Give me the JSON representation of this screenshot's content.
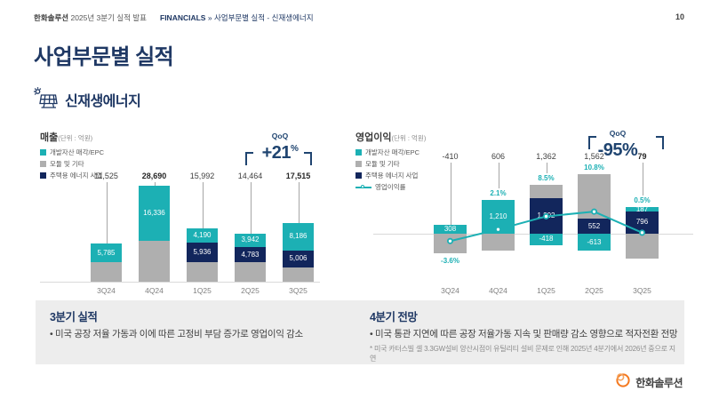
{
  "header": {
    "brand_bold": "한화솔루션",
    "brand_rest": " 2025년 3분기 실적 발표",
    "breadcrumb_section": "FINANCIALS",
    "breadcrumb_separator": "»",
    "breadcrumb_path": "사업부문별 실적 - 신재생에너지",
    "page_number": "10"
  },
  "title": "사업부문별 실적",
  "section_label": "신재생에너지",
  "colors": {
    "teal": "#1CB0B4",
    "navy": "#12265C",
    "gray": "#AFAFAF",
    "accent_navy": "#1F3864",
    "annotation_navy": "#1F4470",
    "box_bg": "#EDEDED",
    "logo_orange": "#F47920"
  },
  "chart_data": [
    {
      "type": "bar",
      "title": "매출",
      "unit_label": "(단위 : 억원)",
      "categories": [
        "3Q24",
        "4Q24",
        "1Q25",
        "2Q25",
        "3Q25"
      ],
      "legend": [
        {
          "name": "개발자산 매각/EPC",
          "color_key": "teal"
        },
        {
          "name": "모듈 및 기타",
          "color_key": "gray"
        },
        {
          "name": "주택용 에너지 사업",
          "color_key": "navy"
        }
      ],
      "series": [
        {
          "name": "개발자산 매각/EPC",
          "color_key": "teal",
          "values": [
            5785,
            16336,
            4190,
            3942,
            8186
          ],
          "labels": [
            "5,785",
            "16,336",
            "4,190",
            "3,942",
            "8,186"
          ]
        },
        {
          "name": "주택용 에너지 사업",
          "color_key": "navy",
          "values": [
            0,
            0,
            5936,
            4783,
            5006
          ],
          "labels": [
            "",
            "",
            "5,936",
            "4,783",
            "5,006"
          ]
        },
        {
          "name": "모듈 및 기타",
          "color_key": "gray",
          "values": [
            5740,
            12354,
            5866,
            5739,
            4323
          ],
          "labels": [
            "",
            "",
            "",
            "",
            ""
          ],
          "estimated": true
        }
      ],
      "totals": [
        11525,
        28690,
        15992,
        14464,
        17515
      ],
      "total_labels": [
        "11,525",
        "28,690",
        "15,992",
        "14,464",
        "17,515"
      ],
      "total_bold": [
        false,
        true,
        false,
        false,
        true
      ],
      "qoq": {
        "caption": "QoQ",
        "value": "+21",
        "suffix": "%"
      }
    },
    {
      "type": "bar-line",
      "title": "영업이익",
      "unit_label": "(단위 : 억원)",
      "categories": [
        "3Q24",
        "4Q24",
        "1Q25",
        "2Q25",
        "3Q25"
      ],
      "legend": [
        {
          "name": "개발자산 매각/EPC",
          "color_key": "teal"
        },
        {
          "name": "모듈 및 기타",
          "color_key": "gray"
        },
        {
          "name": "주택용 에너지 사업",
          "color_key": "navy"
        },
        {
          "name": "영업이익률",
          "color_key": "teal",
          "style": "line"
        }
      ],
      "series": [
        {
          "name": "개발자산 매각/EPC",
          "color_key": "teal",
          "values": [
            308,
            1210,
            -418,
            -613,
            187
          ],
          "labels": [
            "308",
            "1,210",
            "-418",
            "-613",
            "187"
          ]
        },
        {
          "name": "주택용 에너지 사업",
          "color_key": "navy",
          "values": [
            0,
            0,
            1292,
            552,
            796
          ],
          "labels": [
            "",
            "",
            "1,292",
            "552",
            "796"
          ]
        },
        {
          "name": "모듈 및 기타",
          "color_key": "gray",
          "values": [
            -718,
            -604,
            488,
            1623,
            -904
          ],
          "labels": [
            "",
            "",
            "",
            "",
            ""
          ],
          "estimated": true
        }
      ],
      "totals": [
        -410,
        606,
        1362,
        1562,
        79
      ],
      "total_labels": [
        "-410",
        "606",
        "1,362",
        "1,562",
        "79"
      ],
      "total_bold": [
        false,
        false,
        false,
        false,
        true
      ],
      "line": {
        "name": "영업이익률",
        "values_pct": [
          -3.6,
          2.1,
          8.5,
          10.8,
          0.5
        ],
        "labels": [
          "-3.6%",
          "2.1%",
          "8.5%",
          "10.8%",
          "0.5%"
        ],
        "label_below": [
          true,
          false,
          false,
          false,
          false
        ]
      },
      "qoq": {
        "caption": "QoQ",
        "value": "-95%",
        "suffix": ""
      }
    }
  ],
  "commentary": {
    "left": {
      "heading": "3분기 실적",
      "bullet": "미국 공장 저율 가동과 이에 따른 고정비 부담 증가로 영업이익 감소"
    },
    "right": {
      "heading": "4분기 전망",
      "bullet": "미국 통관 지연에 따른 공장 저율가동 지속 및 판매량 감소 영향으로 적자전환 전망",
      "note": "미국 카터스빌 셀 3.3GW설비 양산시점이 유틸리티 설비 문제로 인해 2025년 4분기에서 2026년 중으로 지연"
    }
  },
  "footer": {
    "logo_text": "한화솔루션"
  }
}
